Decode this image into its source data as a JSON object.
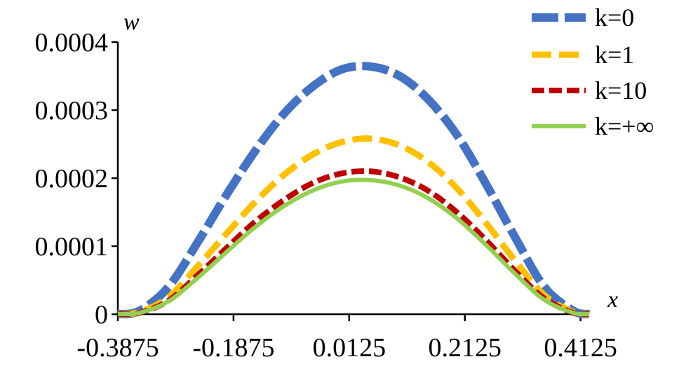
{
  "chart_data": {
    "type": "line",
    "xlabel": "x",
    "ylabel": "w",
    "xlim": [
      -0.3875,
      0.4275
    ],
    "ylim": [
      0,
      0.0004
    ],
    "x_ticks": [
      -0.3875,
      -0.1875,
      0.0125,
      0.2125,
      0.4125
    ],
    "x_tick_labels": [
      "-0.3875",
      "-0.1875",
      "0.0125",
      "0.2125",
      "0.4125"
    ],
    "y_ticks": [
      0,
      0.0001,
      0.0002,
      0.0003,
      0.0004
    ],
    "y_tick_labels": [
      "0",
      "0.0001",
      "0.0002",
      "0.0003",
      "0.0004"
    ],
    "grid": false,
    "legend_position": "top-right",
    "series": [
      {
        "name": "k=0",
        "color": "#4472c4",
        "style": "long-dash",
        "x": [
          -0.3875,
          -0.35,
          -0.3,
          -0.25,
          -0.2,
          -0.15,
          -0.1,
          -0.05,
          0,
          0.05,
          0.1,
          0.15,
          0.2,
          0.25,
          0.3,
          0.35,
          0.4,
          0.4275
        ],
        "y": [
          0,
          5e-06,
          4e-05,
          0.000105,
          0.000175,
          0.00024,
          0.000295,
          0.000335,
          0.00036,
          0.000364,
          0.00035,
          0.000315,
          0.000262,
          0.00019,
          0.000112,
          4e-05,
          5e-06,
          0
        ]
      },
      {
        "name": "k=1",
        "color": "#ffc000",
        "style": "dash",
        "x": [
          -0.3875,
          -0.35,
          -0.3,
          -0.25,
          -0.2,
          -0.15,
          -0.1,
          -0.05,
          0,
          0.05,
          0.1,
          0.15,
          0.2,
          0.25,
          0.3,
          0.35,
          0.4,
          0.4275
        ],
        "y": [
          0,
          3e-06,
          2.5e-05,
          7e-05,
          0.000118,
          0.000165,
          0.000205,
          0.000235,
          0.000253,
          0.000258,
          0.000248,
          0.000223,
          0.000184,
          0.000133,
          7.8e-05,
          2.8e-05,
          3e-06,
          0
        ]
      },
      {
        "name": "k=10",
        "color": "#c00000",
        "style": "short-dash",
        "x": [
          -0.3875,
          -0.35,
          -0.3,
          -0.25,
          -0.2,
          -0.15,
          -0.1,
          -0.05,
          0,
          0.05,
          0.1,
          0.15,
          0.2,
          0.25,
          0.3,
          0.35,
          0.4,
          0.4275
        ],
        "y": [
          0,
          2e-06,
          2e-05,
          5.7e-05,
          9.7e-05,
          0.000136,
          0.000168,
          0.000193,
          0.000207,
          0.00021,
          0.000201,
          0.000181,
          0.000149,
          0.000108,
          6.3e-05,
          2.3e-05,
          2e-06,
          0
        ]
      },
      {
        "name": "k=+∞",
        "color": "#92d050",
        "style": "solid",
        "x": [
          -0.3875,
          -0.35,
          -0.3,
          -0.25,
          -0.2,
          -0.15,
          -0.1,
          -0.05,
          0,
          0.05,
          0.1,
          0.15,
          0.2,
          0.25,
          0.3,
          0.35,
          0.4,
          0.4275
        ],
        "y": [
          0,
          2e-06,
          1.9e-05,
          5.3e-05,
          9.1e-05,
          0.000128,
          0.000159,
          0.000182,
          0.000195,
          0.000197,
          0.000189,
          0.00017,
          0.00014,
          0.000101,
          5.9e-05,
          2.1e-05,
          2e-06,
          0
        ]
      }
    ]
  }
}
